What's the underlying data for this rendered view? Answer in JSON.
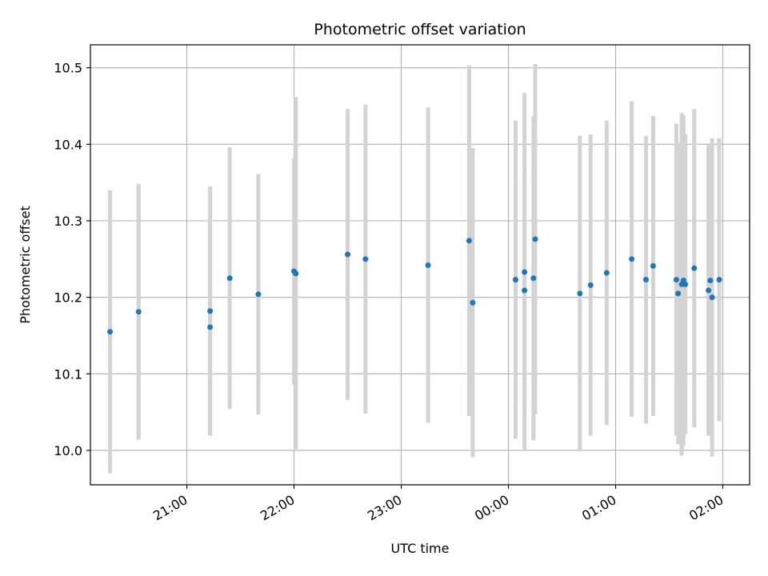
{
  "chart_data": {
    "type": "scatter",
    "title": "Photometric offset variation",
    "xlabel": "UTC time",
    "ylabel": "Photometric offset",
    "x_unit": "UTC time of day (HH:MM), spanning 20:00 to 02:00 next day",
    "xlim": [
      "20:06",
      "02:15"
    ],
    "ylim": [
      9.955,
      10.53
    ],
    "x_ticks": [
      "21:00",
      "22:00",
      "23:00",
      "00:00",
      "01:00",
      "02:00"
    ],
    "y_ticks": [
      10.0,
      10.1,
      10.2,
      10.3,
      10.4,
      10.5
    ],
    "y_tick_labels": [
      "10.0",
      "10.1",
      "10.2",
      "10.3",
      "10.4",
      "10.5"
    ],
    "grid": true,
    "marker_color": "#1f77b4",
    "errorbar_color": "#d3d3d3",
    "series": [
      {
        "points": [
          {
            "x": "20:17",
            "y": 10.155,
            "err": 0.185
          },
          {
            "x": "20:33",
            "y": 10.181,
            "err": 0.167
          },
          {
            "x": "21:13",
            "y": 10.182,
            "err": 0.163
          },
          {
            "x": "21:13",
            "y": 10.161,
            "err": 0.14
          },
          {
            "x": "21:24",
            "y": 10.225,
            "err": 0.171
          },
          {
            "x": "21:40",
            "y": 10.204,
            "err": 0.157
          },
          {
            "x": "22:00",
            "y": 10.234,
            "err": 0.148
          },
          {
            "x": "22:01",
            "y": 10.231,
            "err": 0.231
          },
          {
            "x": "22:30",
            "y": 10.256,
            "err": 0.19
          },
          {
            "x": "22:40",
            "y": 10.25,
            "err": 0.202
          },
          {
            "x": "23:15",
            "y": 10.242,
            "err": 0.206
          },
          {
            "x": "23:38",
            "y": 10.274,
            "err": 0.229
          },
          {
            "x": "23:40",
            "y": 10.193,
            "err": 0.202
          },
          {
            "x": "00:04",
            "y": 10.223,
            "err": 0.208
          },
          {
            "x": "00:09",
            "y": 10.209,
            "err": 0.153
          },
          {
            "x": "00:09",
            "y": 10.233,
            "err": 0.234
          },
          {
            "x": "00:14",
            "y": 10.225,
            "err": 0.212
          },
          {
            "x": "00:15",
            "y": 10.276,
            "err": 0.229
          },
          {
            "x": "00:40",
            "y": 10.205,
            "err": 0.206
          },
          {
            "x": "00:46",
            "y": 10.216,
            "err": 0.197
          },
          {
            "x": "00:55",
            "y": 10.232,
            "err": 0.199
          },
          {
            "x": "01:09",
            "y": 10.25,
            "err": 0.206
          },
          {
            "x": "01:17",
            "y": 10.223,
            "err": 0.188
          },
          {
            "x": "01:21",
            "y": 10.241,
            "err": 0.196
          },
          {
            "x": "01:34",
            "y": 10.223,
            "err": 0.204
          },
          {
            "x": "01:35",
            "y": 10.205,
            "err": 0.197
          },
          {
            "x": "01:37",
            "y": 10.217,
            "err": 0.224
          },
          {
            "x": "01:38",
            "y": 10.222,
            "err": 0.216
          },
          {
            "x": "01:39",
            "y": 10.217,
            "err": 0.196
          },
          {
            "x": "01:44",
            "y": 10.238,
            "err": 0.208
          },
          {
            "x": "01:52",
            "y": 10.209,
            "err": 0.19
          },
          {
            "x": "01:53",
            "y": 10.222,
            "err": 0.175
          },
          {
            "x": "01:54",
            "y": 10.2,
            "err": 0.208
          },
          {
            "x": "01:58",
            "y": 10.223,
            "err": 0.185
          }
        ]
      }
    ]
  }
}
